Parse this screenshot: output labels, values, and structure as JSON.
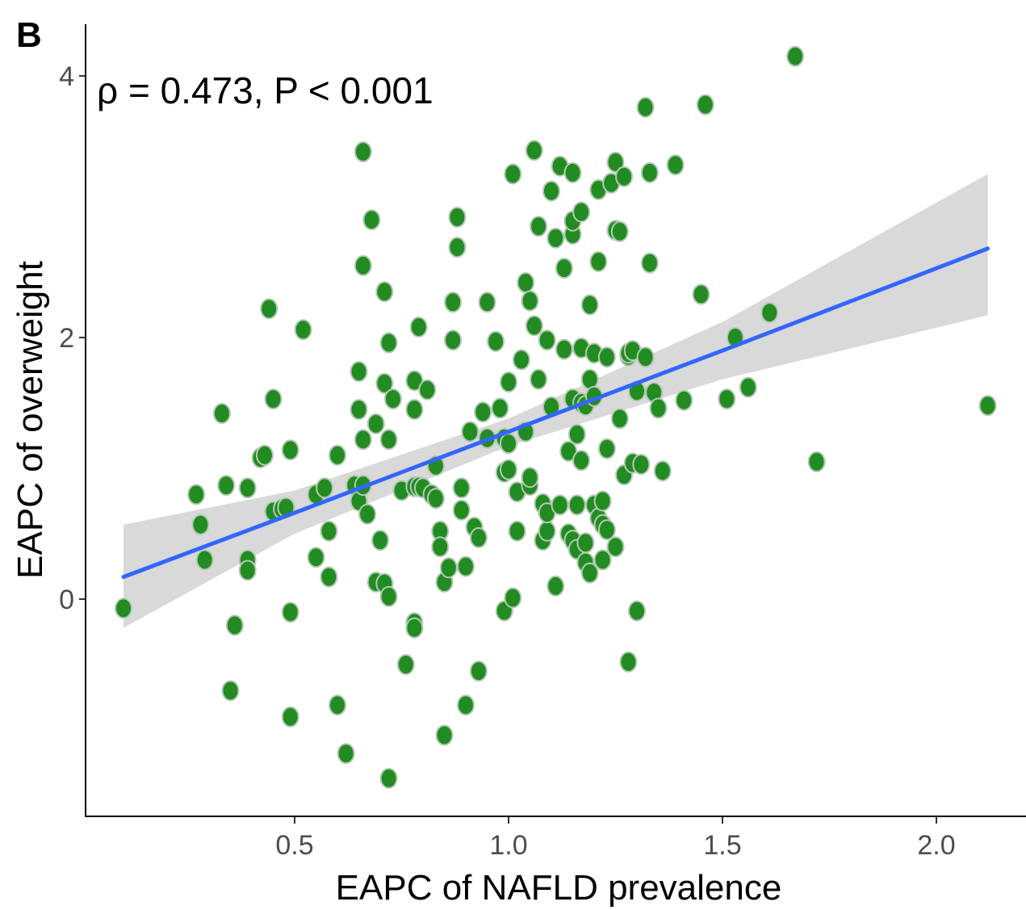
{
  "panel_label": "B",
  "annotation": "ρ = 0.473, P < 0.001",
  "colors": {
    "points": "#228b22",
    "fit_line": "#3366ff",
    "confidence_band": "#d9d9d9"
  },
  "chart_data": {
    "type": "scatter",
    "xlabel": "EAPC of NAFLD prevalence",
    "ylabel": "EAPC of overweight",
    "xlim": [
      0.03,
      2.18
    ],
    "ylim": [
      -1.65,
      4.4
    ],
    "xticks": [
      0.5,
      1.0,
      1.5,
      2.0
    ],
    "xtick_labels": [
      "0.5",
      "1.0",
      "1.5",
      "2.0"
    ],
    "yticks": [
      0,
      2,
      4
    ],
    "ytick_labels": [
      "0",
      "2",
      "4"
    ],
    "grid": false,
    "legend": "none",
    "fit": {
      "type": "linear",
      "x": [
        0.1,
        0.5,
        1.0,
        1.5,
        2.12
      ],
      "y": [
        0.17,
        0.66,
        1.28,
        1.9,
        2.68
      ],
      "ci_lower": [
        -0.22,
        0.5,
        1.17,
        1.68,
        2.17
      ],
      "ci_upper": [
        0.57,
        0.83,
        1.38,
        2.12,
        3.25
      ]
    },
    "points": [
      [
        0.1,
        -0.07
      ],
      [
        0.27,
        0.8
      ],
      [
        0.28,
        0.57
      ],
      [
        0.29,
        0.3
      ],
      [
        0.33,
        1.42
      ],
      [
        0.34,
        0.87
      ],
      [
        0.35,
        -0.7
      ],
      [
        0.36,
        -0.2
      ],
      [
        0.39,
        0.85
      ],
      [
        0.39,
        0.3
      ],
      [
        0.39,
        0.22
      ],
      [
        0.42,
        1.08
      ],
      [
        0.43,
        1.1
      ],
      [
        0.44,
        2.22
      ],
      [
        0.45,
        1.53
      ],
      [
        0.45,
        0.67
      ],
      [
        0.47,
        0.69
      ],
      [
        0.48,
        0.7
      ],
      [
        0.49,
        1.14
      ],
      [
        0.49,
        -0.1
      ],
      [
        0.49,
        -0.9
      ],
      [
        0.52,
        2.06
      ],
      [
        0.55,
        0.8
      ],
      [
        0.55,
        0.32
      ],
      [
        0.57,
        0.85
      ],
      [
        0.58,
        0.52
      ],
      [
        0.58,
        0.17
      ],
      [
        0.6,
        1.1
      ],
      [
        0.6,
        -0.81
      ],
      [
        0.62,
        -1.18
      ],
      [
        0.64,
        0.87
      ],
      [
        0.65,
        0.75
      ],
      [
        0.65,
        1.74
      ],
      [
        0.65,
        1.45
      ],
      [
        0.66,
        0.87
      ],
      [
        0.66,
        1.22
      ],
      [
        0.66,
        2.55
      ],
      [
        0.66,
        3.42
      ],
      [
        0.67,
        0.65
      ],
      [
        0.68,
        2.9
      ],
      [
        0.69,
        1.34
      ],
      [
        0.69,
        0.13
      ],
      [
        0.7,
        0.45
      ],
      [
        0.71,
        0.12
      ],
      [
        0.71,
        1.65
      ],
      [
        0.71,
        2.35
      ],
      [
        0.72,
        1.96
      ],
      [
        0.72,
        0.02
      ],
      [
        0.72,
        1.22
      ],
      [
        0.72,
        -1.37
      ],
      [
        0.73,
        1.53
      ],
      [
        0.75,
        0.83
      ],
      [
        0.76,
        -0.5
      ],
      [
        0.78,
        0.86
      ],
      [
        0.78,
        1.67
      ],
      [
        0.78,
        1.45
      ],
      [
        0.78,
        -0.18
      ],
      [
        0.78,
        -0.22
      ],
      [
        0.79,
        2.08
      ],
      [
        0.79,
        0.86
      ],
      [
        0.8,
        0.85
      ],
      [
        0.81,
        1.6
      ],
      [
        0.82,
        0.8
      ],
      [
        0.83,
        0.77
      ],
      [
        0.83,
        1.02
      ],
      [
        0.84,
        0.52
      ],
      [
        0.84,
        0.4
      ],
      [
        0.85,
        0.13
      ],
      [
        0.85,
        -1.04
      ],
      [
        0.86,
        0.24
      ],
      [
        0.87,
        2.27
      ],
      [
        0.87,
        1.98
      ],
      [
        0.88,
        2.92
      ],
      [
        0.88,
        2.69
      ],
      [
        0.89,
        0.85
      ],
      [
        0.89,
        0.68
      ],
      [
        0.9,
        0.25
      ],
      [
        0.9,
        -0.81
      ],
      [
        0.91,
        1.28
      ],
      [
        0.92,
        0.55
      ],
      [
        0.93,
        -0.55
      ],
      [
        0.93,
        0.47
      ],
      [
        0.94,
        1.43
      ],
      [
        0.95,
        2.27
      ],
      [
        0.95,
        1.23
      ],
      [
        0.97,
        1.97
      ],
      [
        0.98,
        1.46
      ],
      [
        0.99,
        1.23
      ],
      [
        0.99,
        0.97
      ],
      [
        0.99,
        -0.09
      ],
      [
        1.0,
        1.19
      ],
      [
        1.0,
        0.99
      ],
      [
        1.0,
        1.66
      ],
      [
        1.01,
        0.01
      ],
      [
        1.01,
        3.25
      ],
      [
        1.02,
        0.82
      ],
      [
        1.02,
        0.52
      ],
      [
        1.03,
        1.83
      ],
      [
        1.04,
        1.28
      ],
      [
        1.04,
        2.42
      ],
      [
        1.05,
        0.87
      ],
      [
        1.05,
        0.93
      ],
      [
        1.05,
        2.28
      ],
      [
        1.06,
        3.43
      ],
      [
        1.06,
        2.09
      ],
      [
        1.07,
        1.68
      ],
      [
        1.07,
        2.85
      ],
      [
        1.08,
        0.45
      ],
      [
        1.08,
        0.73
      ],
      [
        1.09,
        1.98
      ],
      [
        1.09,
        0.52
      ],
      [
        1.09,
        0.66
      ],
      [
        1.1,
        1.47
      ],
      [
        1.1,
        3.12
      ],
      [
        1.11,
        0.1
      ],
      [
        1.11,
        2.76
      ],
      [
        1.12,
        0.72
      ],
      [
        1.12,
        3.31
      ],
      [
        1.13,
        2.53
      ],
      [
        1.13,
        1.91
      ],
      [
        1.14,
        1.13
      ],
      [
        1.14,
        0.5
      ],
      [
        1.15,
        1.53
      ],
      [
        1.15,
        2.79
      ],
      [
        1.15,
        2.89
      ],
      [
        1.15,
        0.45
      ],
      [
        1.15,
        3.26
      ],
      [
        1.16,
        0.72
      ],
      [
        1.16,
        1.26
      ],
      [
        1.16,
        0.38
      ],
      [
        1.17,
        1.92
      ],
      [
        1.17,
        1.5
      ],
      [
        1.17,
        2.96
      ],
      [
        1.17,
        1.06
      ],
      [
        1.18,
        1.48
      ],
      [
        1.18,
        0.28
      ],
      [
        1.18,
        0.43
      ],
      [
        1.19,
        1.68
      ],
      [
        1.19,
        2.25
      ],
      [
        1.19,
        0.2
      ],
      [
        1.2,
        0.72
      ],
      [
        1.2,
        1.88
      ],
      [
        1.2,
        1.55
      ],
      [
        1.21,
        3.13
      ],
      [
        1.21,
        0.62
      ],
      [
        1.21,
        2.58
      ],
      [
        1.22,
        0.75
      ],
      [
        1.22,
        0.3
      ],
      [
        1.22,
        0.57
      ],
      [
        1.23,
        1.85
      ],
      [
        1.23,
        1.15
      ],
      [
        1.23,
        0.53
      ],
      [
        1.24,
        3.18
      ],
      [
        1.25,
        0.4
      ],
      [
        1.25,
        3.34
      ],
      [
        1.25,
        2.82
      ],
      [
        1.26,
        2.81
      ],
      [
        1.26,
        1.38
      ],
      [
        1.27,
        3.23
      ],
      [
        1.27,
        0.95
      ],
      [
        1.28,
        1.86
      ],
      [
        1.28,
        1.88
      ],
      [
        1.28,
        -0.48
      ],
      [
        1.29,
        1.9
      ],
      [
        1.29,
        1.04
      ],
      [
        1.3,
        -0.09
      ],
      [
        1.3,
        1.59
      ],
      [
        1.31,
        1.03
      ],
      [
        1.32,
        1.85
      ],
      [
        1.32,
        3.76
      ],
      [
        1.33,
        3.26
      ],
      [
        1.33,
        2.57
      ],
      [
        1.34,
        1.58
      ],
      [
        1.35,
        1.46
      ],
      [
        1.36,
        0.98
      ],
      [
        1.39,
        3.32
      ],
      [
        1.41,
        1.52
      ],
      [
        1.45,
        2.33
      ],
      [
        1.46,
        3.78
      ],
      [
        1.51,
        1.53
      ],
      [
        1.53,
        2.0
      ],
      [
        1.56,
        1.62
      ],
      [
        1.61,
        2.19
      ],
      [
        1.67,
        4.15
      ],
      [
        1.72,
        1.05
      ],
      [
        2.12,
        1.48
      ]
    ]
  }
}
